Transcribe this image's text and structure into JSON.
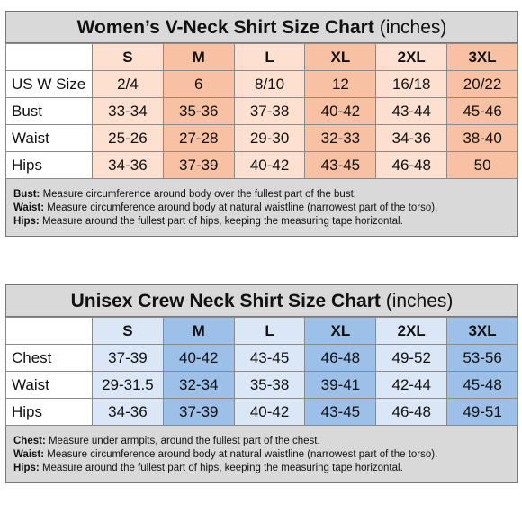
{
  "womens": {
    "title": "Women’s V-Neck Shirt Size Chart",
    "unit": "(inches)",
    "sizes": [
      "S",
      "M",
      "L",
      "XL",
      "2XL",
      "3XL"
    ],
    "rows": [
      {
        "label": "US W Size",
        "values": [
          "2/4",
          "6",
          "8/10",
          "12",
          "16/18",
          "20/22"
        ]
      },
      {
        "label": "Bust",
        "values": [
          "33-34",
          "35-36",
          "37-38",
          "40-42",
          "43-44",
          "45-46"
        ]
      },
      {
        "label": "Waist",
        "values": [
          "25-26",
          "27-28",
          "29-30",
          "32-33",
          "34-36",
          "38-40"
        ]
      },
      {
        "label": "Hips",
        "values": [
          "34-36",
          "37-39",
          "40-42",
          "43-45",
          "46-48",
          "50"
        ]
      }
    ],
    "notes": [
      {
        "term": "Bust:",
        "text": " Measure circumference around body over the fullest part of the bust."
      },
      {
        "term": "Waist:",
        "text": " Measure circumference around body at natural waistline (narrowest part of the torso)."
      },
      {
        "term": "Hips:",
        "text": " Measure around the fullest part of hips, keeping the measuring tape horizontal."
      }
    ]
  },
  "unisex": {
    "title": "Unisex Crew Neck Shirt Size Chart",
    "unit": "(inches)",
    "sizes": [
      "S",
      "M",
      "L",
      "XL",
      "2XL",
      "3XL"
    ],
    "rows": [
      {
        "label": "Chest",
        "values": [
          "37-39",
          "40-42",
          "43-45",
          "46-48",
          "49-52",
          "53-56"
        ]
      },
      {
        "label": "Waist",
        "values": [
          "29-31.5",
          "32-34",
          "35-38",
          "39-41",
          "42-44",
          "45-48"
        ]
      },
      {
        "label": "Hips",
        "values": [
          "34-36",
          "37-39",
          "40-42",
          "43-45",
          "46-48",
          "49-51"
        ]
      }
    ],
    "notes": [
      {
        "term": "Chest:",
        "text": " Measure under armpits, around the fullest part of the chest."
      },
      {
        "term": "Waist:",
        "text": " Measure circumference around body at natural waistline (narrowest part of the torso)."
      },
      {
        "term": "Hips:",
        "text": " Measure around the fullest part of hips, keeping the measuring tape horizontal."
      }
    ]
  },
  "colors": {
    "womens_light": "#fde0d0",
    "womens_dark": "#f8c1a4",
    "unisex_light": "#dbe7f6",
    "unisex_dark": "#9cc0e7",
    "panel_gray": "#d9d9d9"
  }
}
